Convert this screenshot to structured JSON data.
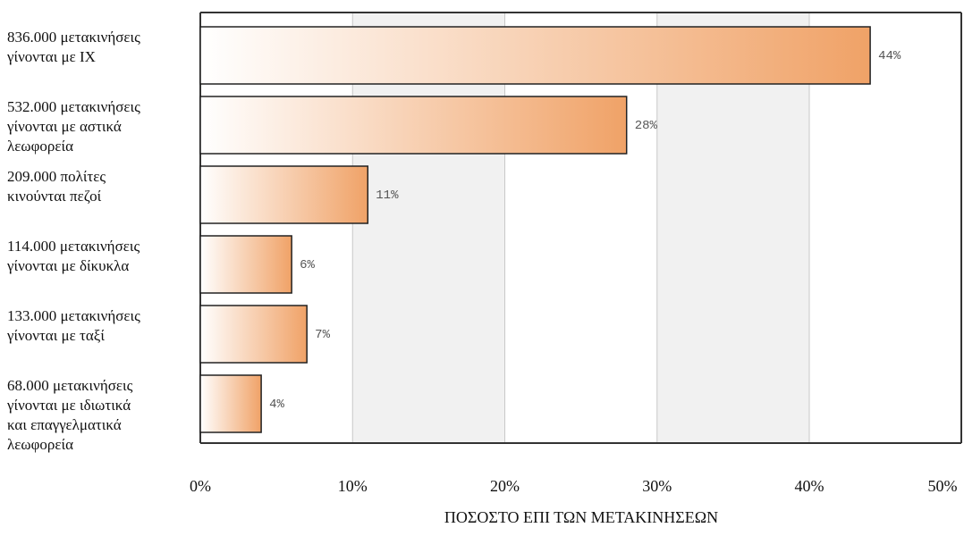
{
  "chart_data": {
    "type": "bar",
    "orientation": "horizontal",
    "categories": [
      [
        "836.000 μετακινήσεις",
        "γίνονται με ΙΧ"
      ],
      [
        "532.000 μετακινήσεις",
        "γίνονται με αστικά",
        "λεωφορεία"
      ],
      [
        "209.000 πολίτες",
        "κινούνται πεζοί"
      ],
      [
        "114.000 μετακινήσεις",
        "γίνονται με δίκυκλα"
      ],
      [
        "133.000 μετακινήσεις",
        "γίνονται με ταξί"
      ],
      [
        "68.000 μετακινήσεις",
        "γίνονται με ιδιωτικά",
        "και επαγγελματικά",
        "λεωφορεία"
      ]
    ],
    "values": [
      44,
      28,
      11,
      6,
      7,
      4
    ],
    "value_labels": [
      "44%",
      "28%",
      "11%",
      "6%",
      "7%",
      "4%"
    ],
    "xlim": [
      0,
      50
    ],
    "x_ticks": [
      0,
      10,
      20,
      30,
      40,
      50
    ],
    "x_tick_labels": [
      "0%",
      "10%",
      "20%",
      "30%",
      "40%",
      "50%"
    ],
    "xlabel": "ΠΟΣΟΣΤΟ ΕΠΙ ΤΩΝ ΜΕΤΑΚΙΝΗΣΕΩΝ",
    "title": "",
    "grid": "vertical-bands",
    "legend": "none",
    "colors": {
      "bar_light": "#ffffff",
      "bar_dark": "#f0a267",
      "bar_stroke": "#222222",
      "band_fill": "#f1f1f1",
      "grid_line": "#c8c8c8",
      "axis_line": "#333333"
    }
  }
}
